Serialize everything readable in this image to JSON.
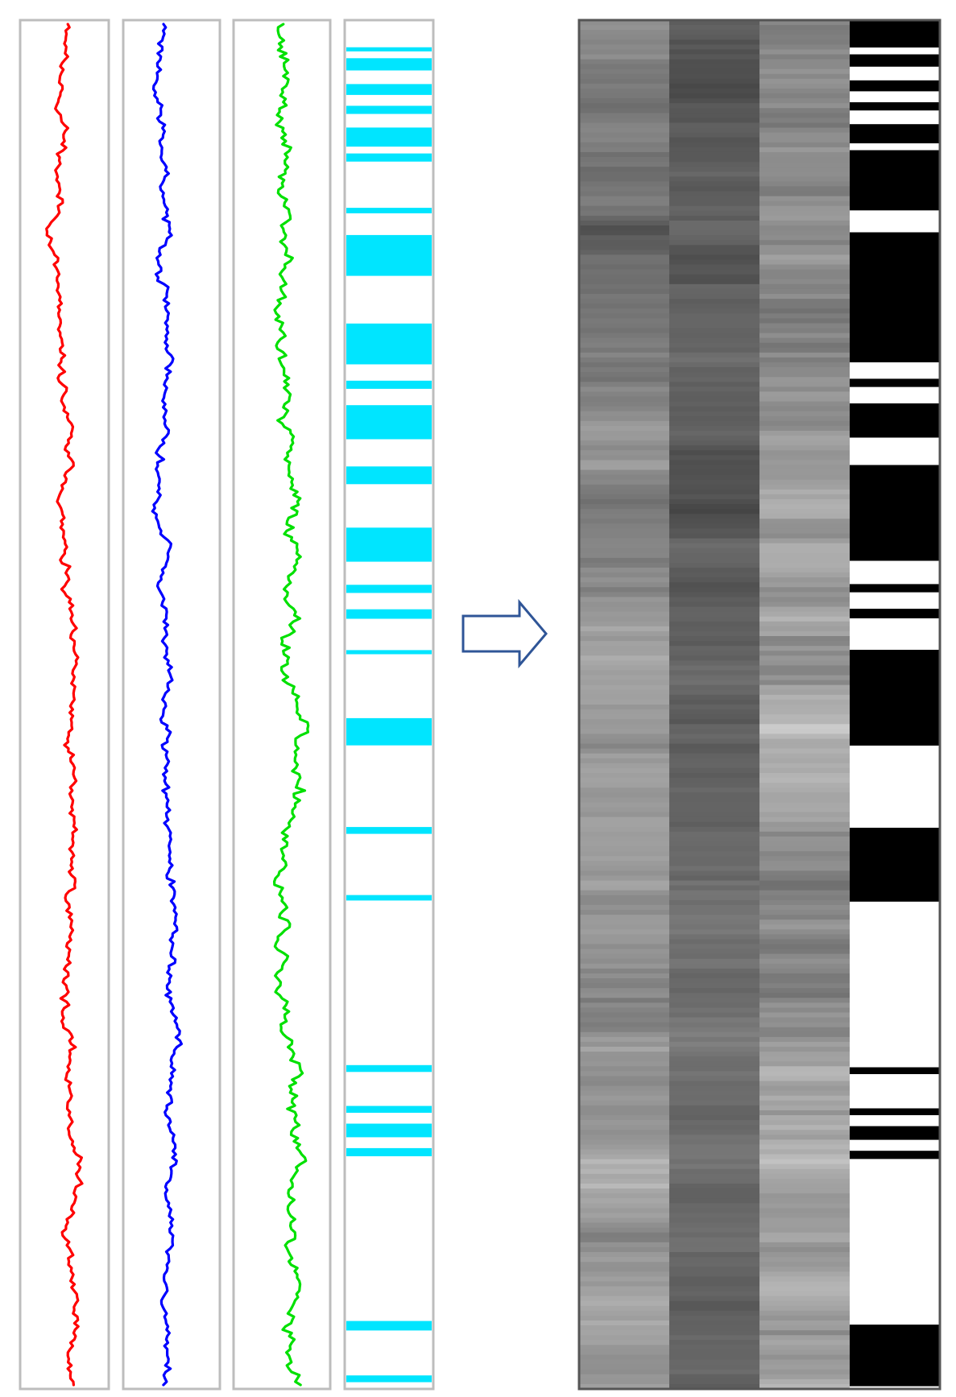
{
  "diagram": {
    "description_free": true,
    "tracks": [
      {
        "id": "track-1",
        "color": "#ff0000",
        "seed": 11,
        "mean": 0.58,
        "amplitude": 0.22
      },
      {
        "id": "track-2",
        "color": "#0000ff",
        "seed": 23,
        "mean": 0.42,
        "amplitude": 0.2
      },
      {
        "id": "track-3",
        "color": "#00e000",
        "seed": 37,
        "mean": 0.55,
        "amplitude": 0.3
      }
    ],
    "binary_track": {
      "color": "#00e5ff",
      "bands": [
        [
          0.017,
          0.02
        ],
        [
          0.025,
          0.034
        ],
        [
          0.044,
          0.052
        ],
        [
          0.06,
          0.066
        ],
        [
          0.076,
          0.09
        ],
        [
          0.095,
          0.101
        ],
        [
          0.135,
          0.139
        ],
        [
          0.155,
          0.185
        ],
        [
          0.22,
          0.25
        ],
        [
          0.262,
          0.268
        ],
        [
          0.28,
          0.305
        ],
        [
          0.325,
          0.338
        ],
        [
          0.37,
          0.395
        ],
        [
          0.412,
          0.418
        ],
        [
          0.43,
          0.437
        ],
        [
          0.46,
          0.463
        ],
        [
          0.51,
          0.53
        ],
        [
          0.59,
          0.595
        ],
        [
          0.64,
          0.644
        ],
        [
          0.765,
          0.77
        ],
        [
          0.795,
          0.8
        ],
        [
          0.808,
          0.818
        ],
        [
          0.826,
          0.832
        ],
        [
          0.953,
          0.96
        ],
        [
          0.993,
          0.998
        ]
      ]
    },
    "arrow": {
      "stroke": "#2f5597",
      "fill": "#ffffff"
    },
    "heatmap": {
      "columns": 4,
      "binary_last_column": true
    }
  }
}
